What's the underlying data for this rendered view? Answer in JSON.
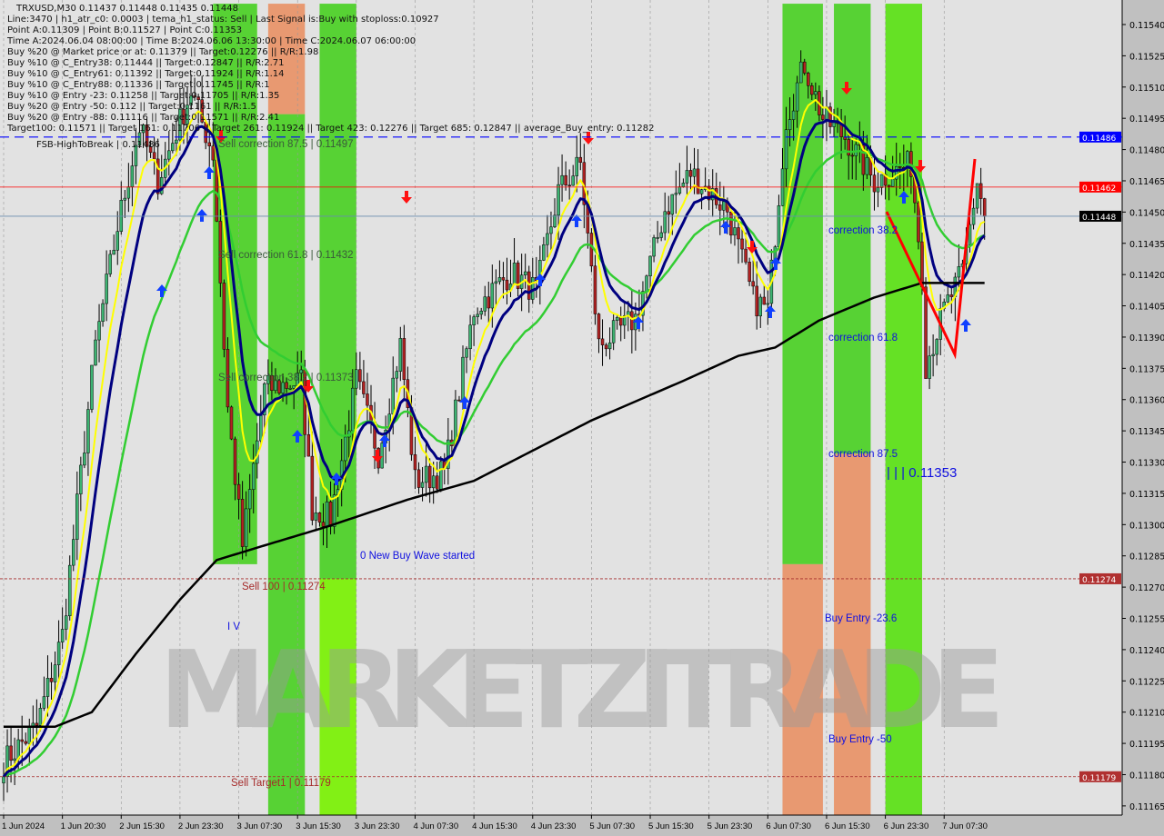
{
  "header": {
    "symbol_line": "TRXUSD,M30  0.11437 0.11448 0.11435 0.11448",
    "info_lines": [
      "Line:3470 | h1_atr_c0: 0.0003 | tema_h1_status: Sell | Last Signal is:Buy with stoploss:0.10927",
      "Point A:0.11309 | Point B:0.11527 | Point C:0.11353",
      "Time A:2024.06.04 08:00:00 | Time B:2024.06.06 13:30:00 | Time C:2024.06.07 06:00:00",
      "Buy %20 @ Market price or at: 0.11379 || Target:0.12276 || R/R:1.98",
      "Buy %10 @ C_Entry38: 0.11444 || Target:0.12847 || R/R:2.71",
      "Buy %10 @ C_Entry61: 0.11392 || Target:0.11924 || R/R:1.14",
      "Buy %10 @ C_Entry88: 0.11336 || Target:0.11745 || R/R:1",
      "Buy %10 @ Entry -23: 0.11258 || Target:0.11705 || R/R:1.35",
      "Buy %20 @ Entry -50: 0.112 || Target:0.1161 || R/R:1.5",
      "Buy %20 @ Entry -88: 0.11116 || Target:0.11571 || R/R:2.41",
      "Target100: 0.11571 || Target 161: 0.11706 || Target 261: 0.11924 || Target 423: 0.12276 || Target 685: 0.12847 || average_Buy_entry: 0.11282"
    ],
    "fsb_label": "FSB-HighToBreak | 0.11486"
  },
  "labels": {
    "sell_corr_875": "Sell correction 87.5 | 0.11497",
    "sell_corr_618": "Sell correction 61.8 | 0.11432",
    "sell_corr_382": "Sell correction 38.2 | 0.11373",
    "new_wave": "0 New Buy Wave started",
    "sell_100": "Sell 100 | 0.11274",
    "sell_target1": "Sell Target1 | 0.11179",
    "wave_iv": "I V",
    "corr_382": "correction 38.2",
    "corr_618": "correction 61.8",
    "corr_875": "correction 87.5",
    "point_c": "| | | 0.11353",
    "buy_entry_236": "Buy Entry -23.6",
    "buy_entry_50": "Buy Entry -50",
    "watermark": "MARKETZITRADE"
  },
  "chart_data": {
    "type": "candlestick",
    "symbol": "TRXUSD",
    "timeframe": "M30",
    "ylim": [
      0.11158,
      0.1155
    ],
    "y_ticks": [
      0.1154,
      0.11525,
      0.1151,
      0.11495,
      0.1148,
      0.11465,
      0.1145,
      0.11435,
      0.1142,
      0.11405,
      0.1139,
      0.11375,
      0.1136,
      0.11345,
      0.1133,
      0.11315,
      0.113,
      0.11285,
      0.1127,
      0.11255,
      0.1124,
      0.11225,
      0.1121,
      0.11195,
      0.1118,
      0.11165
    ],
    "x_ticks": {
      "every_bars": 16,
      "labels": [
        "1 Jun 2024",
        "1 Jun 20:30",
        "2 Jun 15:30",
        "2 Jun 23:30",
        "3 Jun 07:30",
        "3 Jun 15:30",
        "3 Jun 23:30",
        "4 Jun 07:30",
        "4 Jun 15:30",
        "4 Jun 23:30",
        "5 Jun 07:30",
        "5 Jun 15:30",
        "5 Jun 23:30",
        "6 Jun 07:30",
        "6 Jun 15:30",
        "6 Jun 23:30",
        "7 Jun 07:30"
      ]
    },
    "price_path": [
      [
        0,
        0.11186
      ],
      [
        9,
        0.11203
      ],
      [
        16,
        0.11247
      ],
      [
        25,
        0.11386
      ],
      [
        31,
        0.11443
      ],
      [
        37,
        0.11491
      ],
      [
        42,
        0.11465
      ],
      [
        51,
        0.11508
      ],
      [
        57,
        0.11478
      ],
      [
        61,
        0.11356
      ],
      [
        65,
        0.1129
      ],
      [
        71,
        0.11365
      ],
      [
        81,
        0.11369
      ],
      [
        84,
        0.11308
      ],
      [
        89,
        0.11303
      ],
      [
        96,
        0.11369
      ],
      [
        102,
        0.11334
      ],
      [
        108,
        0.11386
      ],
      [
        112,
        0.11321
      ],
      [
        120,
        0.11325
      ],
      [
        128,
        0.11403
      ],
      [
        138,
        0.11421
      ],
      [
        145,
        0.11412
      ],
      [
        151,
        0.1146
      ],
      [
        157,
        0.11473
      ],
      [
        162,
        0.11386
      ],
      [
        172,
        0.11399
      ],
      [
        180,
        0.11451
      ],
      [
        187,
        0.11469
      ],
      [
        197,
        0.11451
      ],
      [
        204,
        0.11408
      ],
      [
        208,
        0.11403
      ],
      [
        213,
        0.11495
      ],
      [
        218,
        0.11521
      ],
      [
        223,
        0.11495
      ],
      [
        229,
        0.11486
      ],
      [
        237,
        0.11465
      ],
      [
        247,
        0.11473
      ],
      [
        250,
        0.11421
      ],
      [
        251,
        0.11377
      ],
      [
        256,
        0.11403
      ],
      [
        261,
        0.11421
      ],
      [
        265,
        0.11465
      ],
      [
        267,
        0.11448
      ]
    ],
    "slow_ma": [
      [
        0,
        0.11203
      ],
      [
        14,
        0.11203
      ],
      [
        24,
        0.1121
      ],
      [
        36,
        0.11238
      ],
      [
        48,
        0.11264
      ],
      [
        58,
        0.11283
      ],
      [
        71,
        0.1129
      ],
      [
        88,
        0.11299
      ],
      [
        110,
        0.11312
      ],
      [
        128,
        0.11321
      ],
      [
        160,
        0.1135
      ],
      [
        185,
        0.11369
      ],
      [
        200,
        0.11381
      ],
      [
        210,
        0.11385
      ],
      [
        222,
        0.11398
      ],
      [
        237,
        0.11409
      ],
      [
        250,
        0.11416
      ],
      [
        267,
        0.11416
      ]
    ],
    "horizontal_levels": [
      {
        "price": 0.11486,
        "color": "#0000ff",
        "style": "dashed",
        "label": "0.11486"
      },
      {
        "price": 0.11462,
        "color": "#ff0000",
        "style": "solid",
        "label": "0.11462"
      },
      {
        "price": 0.11448,
        "color": "#6a8caf",
        "style": "solid",
        "label": "0.11448"
      },
      {
        "price": 0.11274,
        "color": "#a52a2a",
        "style": "dashed",
        "label": "0.11274"
      },
      {
        "price": 0.11179,
        "color": "#a52a2a",
        "style": "dashed",
        "label": "0.11179"
      }
    ],
    "zones": [
      {
        "from_bar": 57,
        "to_bar": 69,
        "color": "#4fd12a",
        "top": 0.1155,
        "bottom": 0.11281
      },
      {
        "from_bar": 72,
        "to_bar": 82,
        "color": "#4fd12a",
        "top": 0.11497,
        "bottom": 0.11158
      },
      {
        "from_bar": 72,
        "to_bar": 82,
        "color": "#e8956a",
        "top": 0.1155,
        "bottom": 0.11497
      },
      {
        "from_bar": 86,
        "to_bar": 96,
        "color": "#4fd12a",
        "top": 0.1155,
        "bottom": 0.11274
      },
      {
        "from_bar": 86,
        "to_bar": 96,
        "color": "#7cf00a",
        "top": 0.11274,
        "bottom": 0.11158
      },
      {
        "from_bar": 212,
        "to_bar": 223,
        "color": "#4fd12a",
        "top": 0.1155,
        "bottom": 0.11281
      },
      {
        "from_bar": 212,
        "to_bar": 223,
        "color": "#e8956a",
        "top": 0.11281,
        "bottom": 0.11158
      },
      {
        "from_bar": 226,
        "to_bar": 236,
        "color": "#4fd12a",
        "top": 0.1155,
        "bottom": 0.11334
      },
      {
        "from_bar": 226,
        "to_bar": 236,
        "color": "#e8956a",
        "top": 0.11334,
        "bottom": 0.11158
      },
      {
        "from_bar": 240,
        "to_bar": 250,
        "color": "#5ee01a",
        "top": 0.1155,
        "bottom": 0.11158
      }
    ],
    "colors": {
      "bull": "#3cb371",
      "bear": "#b22222",
      "fast_ma": "#000080",
      "mid_ma": "#ffff00",
      "green_ma": "#32cd32",
      "slow_ma": "#000000"
    }
  }
}
